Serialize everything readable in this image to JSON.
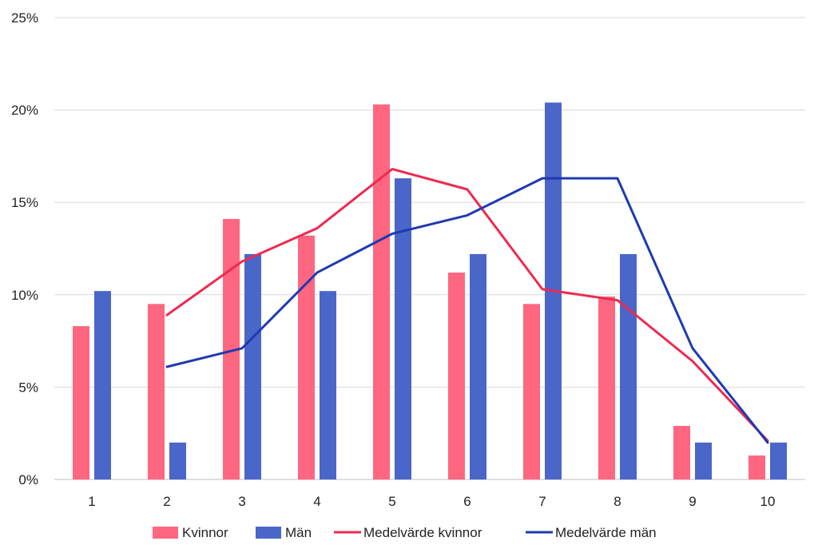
{
  "chart_data": {
    "type": "bar",
    "categories": [
      "1",
      "2",
      "3",
      "4",
      "5",
      "6",
      "7",
      "8",
      "9",
      "10"
    ],
    "series": [
      {
        "name": "Kvinnor",
        "kind": "bar",
        "color": "#ff6680",
        "values": [
          8.3,
          9.5,
          14.1,
          13.2,
          20.3,
          11.2,
          9.5,
          9.9,
          2.9,
          1.3
        ]
      },
      {
        "name": "Män",
        "kind": "bar",
        "color": "#4a66c9",
        "values": [
          10.2,
          2.0,
          12.2,
          10.2,
          16.3,
          12.2,
          20.4,
          12.2,
          2.0,
          2.0
        ]
      },
      {
        "name": "Medelvärde kvinnor",
        "kind": "line",
        "color": "#ee2a4f",
        "values": [
          null,
          8.9,
          11.8,
          13.6,
          16.8,
          15.7,
          10.3,
          9.7,
          6.4,
          2.1
        ]
      },
      {
        "name": "Medelvärde män",
        "kind": "line",
        "color": "#1f3ab0",
        "values": [
          null,
          6.1,
          7.1,
          11.2,
          13.3,
          14.3,
          16.3,
          16.3,
          7.1,
          2.0
        ]
      }
    ],
    "y_ticks": [
      "0%",
      "5%",
      "10%",
      "15%",
      "20%",
      "25%"
    ],
    "ylim": [
      0,
      25
    ],
    "grid": true,
    "legend_position": "bottom"
  }
}
